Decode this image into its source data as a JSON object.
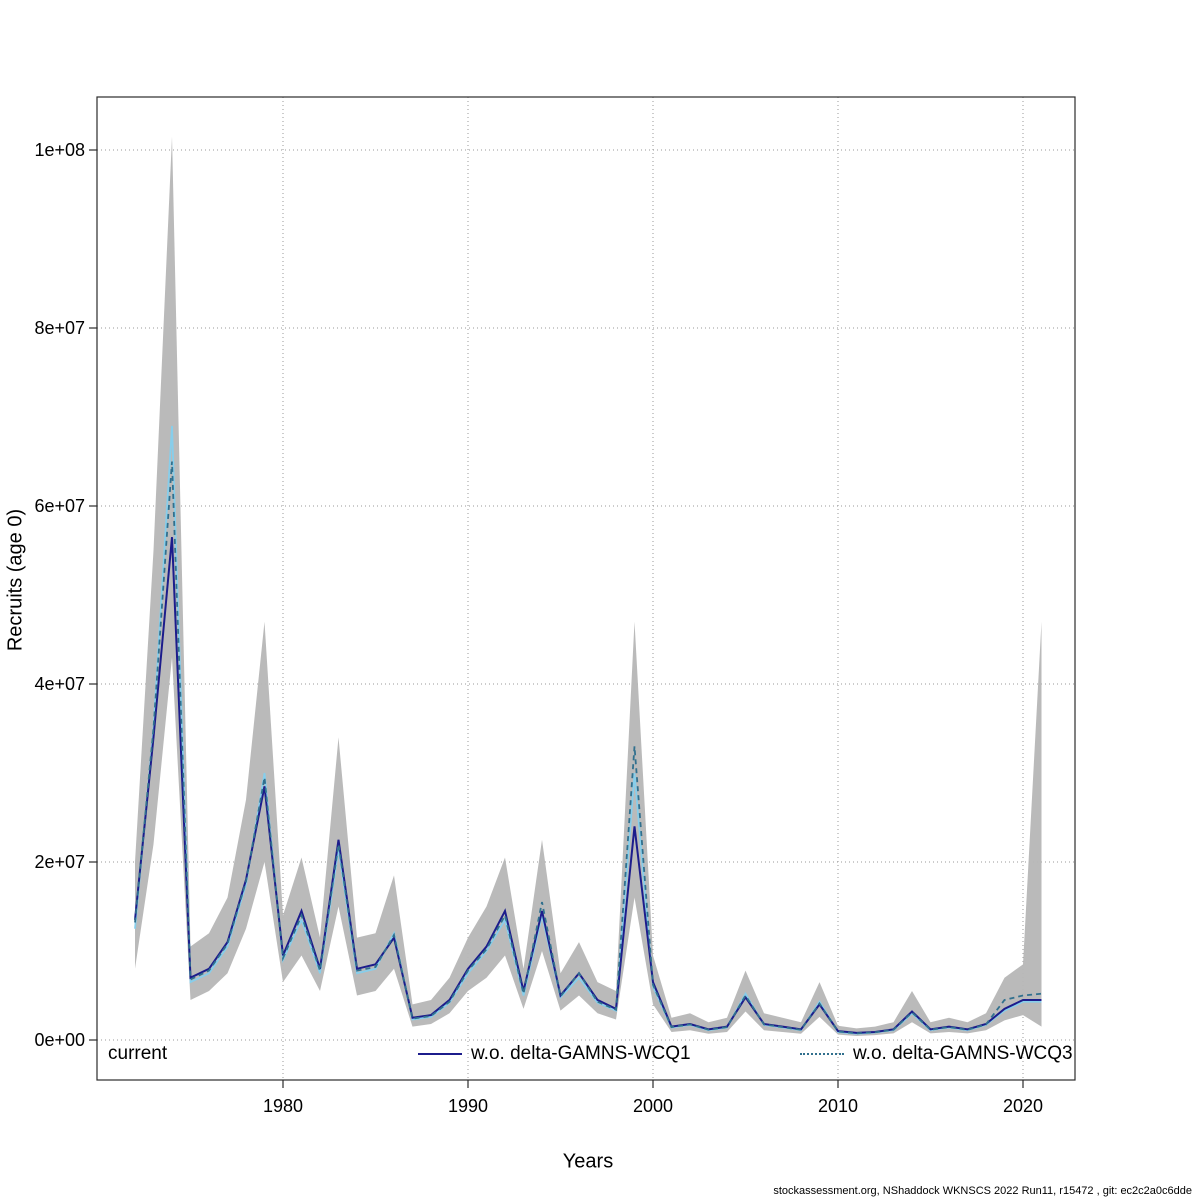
{
  "footer": {
    "text": "stockassessment.org, NShaddock  WKNSCS  2022  Run11, r15472 , git: ec2c2a0c6dde"
  },
  "legend": {
    "items": [
      {
        "label": "current",
        "color": "#87CEEB",
        "style": "solid"
      },
      {
        "label": "w.o. delta-GAMNS-WCQ1",
        "color": "#1C1C8C",
        "style": "solid"
      },
      {
        "label": "w.o. delta-GAMNS-WCQ3",
        "color": "#31708E",
        "style": "dotted"
      }
    ]
  },
  "chart_data": {
    "type": "line",
    "title": "",
    "xlabel": "Years",
    "ylabel": "Recruits (age 0)",
    "x_ticks": [
      1980,
      1990,
      2000,
      2010,
      2020
    ],
    "y_ticks_millions": [
      0,
      20,
      40,
      60,
      80,
      100
    ],
    "y_tick_labels": [
      "0e+00",
      "2e+07",
      "4e+07",
      "6e+07",
      "8e+07",
      "1e+08"
    ],
    "ylim": [
      0,
      106000000
    ],
    "xlim": [
      1970,
      2023
    ],
    "grid": "dotted",
    "legend_position": "bottom-inside",
    "years": [
      1972,
      1973,
      1974,
      1975,
      1976,
      1977,
      1978,
      1979,
      1980,
      1981,
      1982,
      1983,
      1984,
      1985,
      1986,
      1987,
      1988,
      1989,
      1990,
      1991,
      1992,
      1993,
      1994,
      1995,
      1996,
      1997,
      1998,
      1999,
      2000,
      2001,
      2002,
      2003,
      2004,
      2005,
      2006,
      2007,
      2008,
      2009,
      2010,
      2011,
      2012,
      2013,
      2014,
      2015,
      2016,
      2017,
      2018,
      2019,
      2020,
      2021
    ],
    "units_note": "values_millions are recruits in millions (1e6)",
    "series": [
      {
        "name": "current",
        "color": "#87CEEB",
        "dash": null,
        "width": 1.8,
        "values_millions": [
          12.5,
          35,
          69,
          6.5,
          7.5,
          10.5,
          17.5,
          30,
          9,
          13.5,
          7.5,
          21.5,
          7.5,
          8,
          12,
          2.3,
          2.6,
          4.2,
          7.5,
          10,
          13.5,
          5,
          14,
          4.8,
          7,
          4.2,
          3.3,
          30,
          6,
          1.4,
          1.7,
          1.1,
          1.4,
          5.2,
          1.7,
          1.4,
          1.1,
          4.3,
          0.9,
          0.7,
          0.85,
          1.1,
          3,
          1.1,
          1.4,
          1.1,
          1.7,
          3.3,
          4.3,
          4.3
        ]
      },
      {
        "name": "wo-delta-GAMNS-WCQ1",
        "color": "#1C1C8C",
        "dash": null,
        "width": 2,
        "values_millions": [
          13.5,
          34,
          56.5,
          7,
          8,
          11,
          18,
          28.5,
          9.5,
          14.5,
          8,
          22.5,
          8,
          8.5,
          11.5,
          2.5,
          2.8,
          4.5,
          8,
          10.5,
          14.5,
          5.5,
          14.5,
          5,
          7.5,
          4.5,
          3.5,
          24,
          6.5,
          1.5,
          1.8,
          1.2,
          1.5,
          4.8,
          1.8,
          1.5,
          1.2,
          4,
          1,
          0.8,
          0.9,
          1.2,
          3.2,
          1.2,
          1.5,
          1.2,
          1.8,
          3.5,
          4.5,
          4.5
        ]
      },
      {
        "name": "wo-delta-GAMNS-WCQ3",
        "color": "#31708E",
        "dash": "5 4",
        "width": 1.8,
        "values_millions": [
          13.2,
          35,
          65,
          6.8,
          7.8,
          10.8,
          17.8,
          29.5,
          9.2,
          14,
          7.8,
          22,
          7.8,
          8.2,
          11.8,
          2.4,
          2.7,
          4.3,
          7.8,
          10.2,
          14,
          5.2,
          15.5,
          4.9,
          7.5,
          4.3,
          3.4,
          33,
          6.2,
          1.45,
          1.75,
          1.15,
          1.45,
          5,
          1.75,
          1.45,
          1.15,
          4.1,
          0.95,
          0.75,
          0.87,
          1.15,
          3.1,
          1.15,
          1.45,
          1.15,
          1.75,
          4.5,
          5,
          5.2
        ]
      }
    ],
    "band": {
      "color": "#B6B6B6",
      "opacity": 0.95,
      "lower_millions": [
        8,
        22,
        43,
        4.5,
        5.5,
        7.5,
        12.5,
        20,
        6.5,
        9.5,
        5.5,
        15,
        5,
        5.5,
        8,
        1.5,
        1.8,
        3,
        5.5,
        7,
        9.5,
        3.5,
        10,
        3.3,
        5,
        3,
        2.3,
        16,
        4,
        0.9,
        1.1,
        0.7,
        0.9,
        3.2,
        1.1,
        0.9,
        0.7,
        2.6,
        0.6,
        0.45,
        0.55,
        0.75,
        2,
        0.75,
        0.9,
        0.75,
        1.1,
        2.2,
        2.8,
        1.5
      ],
      "upper_millions": [
        20,
        55,
        101.5,
        10.5,
        12,
        16,
        27,
        47,
        14,
        20.5,
        11.5,
        34,
        11.5,
        12,
        18.5,
        4,
        4.5,
        7,
        11.5,
        15,
        20.5,
        8,
        22.5,
        7.5,
        11,
        6.5,
        5.5,
        47,
        9.5,
        2.5,
        3,
        2,
        2.5,
        7.8,
        3,
        2.5,
        2,
        6.5,
        1.6,
        1.3,
        1.5,
        2,
        5.5,
        2,
        2.5,
        2,
        3,
        7,
        8.5,
        47
      ]
    }
  }
}
